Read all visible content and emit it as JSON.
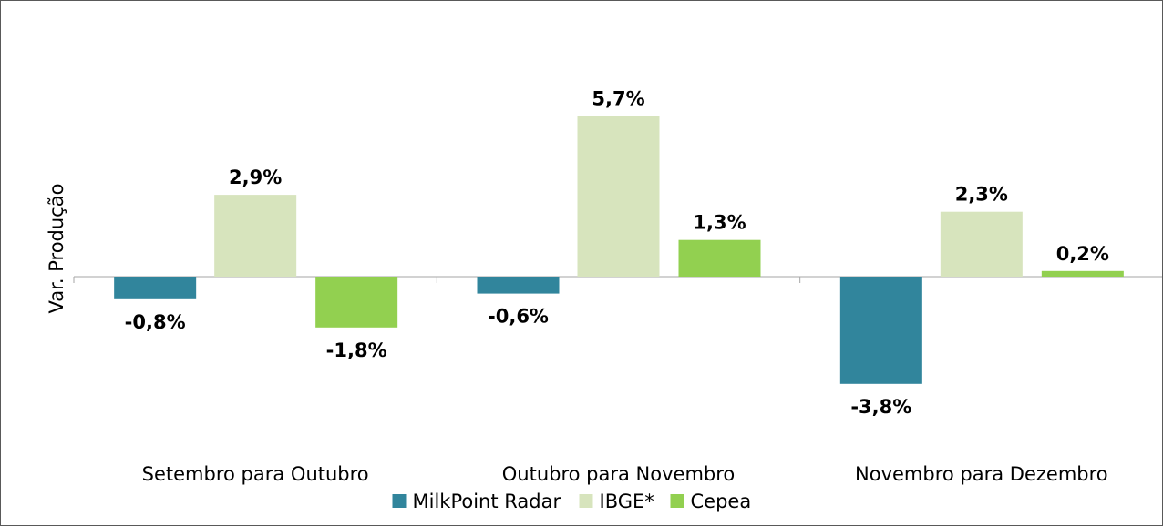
{
  "chart_data": {
    "type": "bar",
    "title": "",
    "xlabel": "",
    "ylabel": "Var. Produção",
    "categories": [
      "Setembro para Outubro",
      "Outubro para Novembro",
      "Novembro para Dezembro"
    ],
    "series": [
      {
        "name": "MilkPoint Radar",
        "color": "#31859c",
        "values": [
          -0.8,
          -0.6,
          -3.8
        ],
        "labels": [
          "-0,8%",
          "-0,6%",
          "-3,8%"
        ]
      },
      {
        "name": "IBGE*",
        "color": "#d7e4bd",
        "values": [
          2.9,
          5.7,
          2.3
        ],
        "labels": [
          "2,9%",
          "5,7%",
          "2,3%"
        ]
      },
      {
        "name": "Cepea",
        "color": "#92d050",
        "values": [
          -1.8,
          1.3,
          0.2
        ],
        "labels": [
          "-1,8%",
          "1,3%",
          "0,2%"
        ]
      }
    ],
    "ylim": [
      -6,
      8
    ],
    "grid": false,
    "legend": "bottom"
  }
}
